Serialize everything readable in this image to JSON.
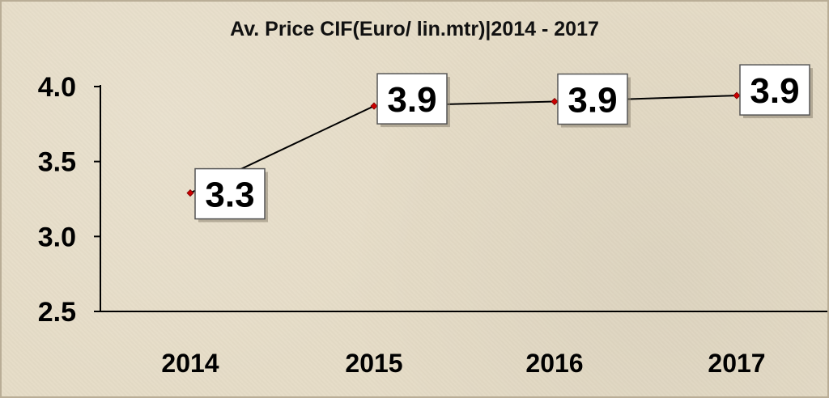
{
  "chart_data": {
    "type": "line",
    "title": "Av. Price CIF(Euro/ lin.mtr)|2014 - 2017",
    "categories": [
      "2014",
      "2015",
      "2016",
      "2017"
    ],
    "series": [
      {
        "values": [
          3.29,
          3.87,
          3.9,
          3.94
        ]
      }
    ],
    "data_labels": [
      "3.3",
      "3.9",
      "3.9",
      "3.9"
    ],
    "ylim": [
      2.5,
      4.0
    ],
    "yticks": [
      4.0,
      3.5,
      3.0,
      2.5
    ],
    "ytick_labels": [
      "4.0",
      "3.5",
      "3.0",
      "2.5"
    ],
    "grid": false,
    "legend": "none",
    "colors": {
      "line": "#000000",
      "marker": "#cc0000",
      "label_bg": "#ffffff",
      "label_border": "#555555"
    }
  }
}
